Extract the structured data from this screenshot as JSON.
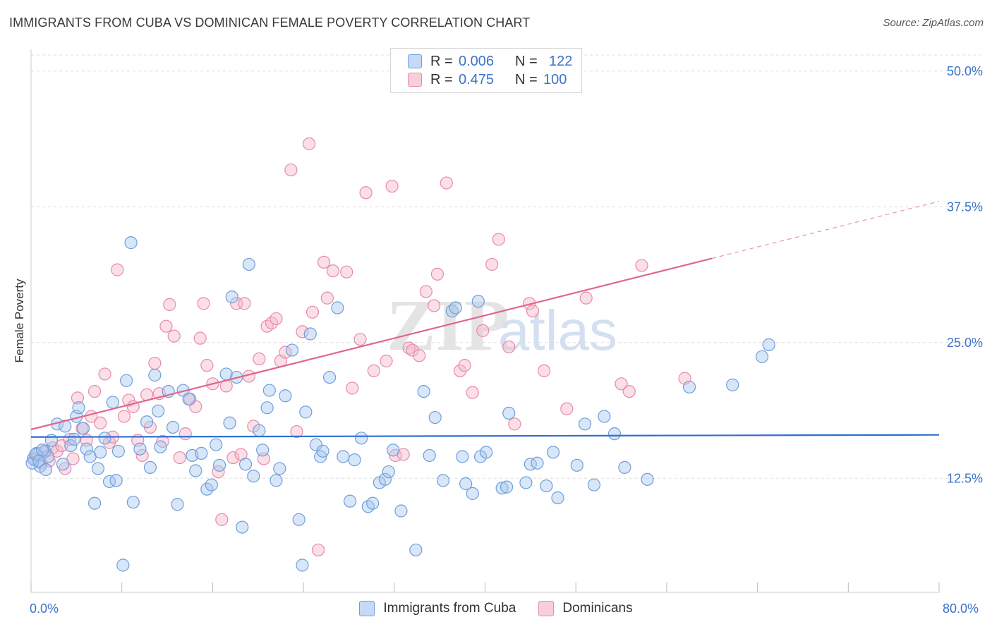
{
  "title": "IMMIGRANTS FROM CUBA VS DOMINICAN FEMALE POVERTY CORRELATION CHART",
  "source": "Source: ZipAtlas.com",
  "colors": {
    "blue_fill": "#a9c8ee",
    "blue_stroke": "#6d9fdc",
    "blue_line": "#2f6fd0",
    "pink_fill": "#f5b7c9",
    "pink_stroke": "#e98aa9",
    "pink_line": "#e0668f",
    "axis_text": "#3c73c9",
    "grid": "#dddddd"
  },
  "legend": {
    "rows": [
      {
        "r_label": "R =",
        "r_value": "0.006",
        "n_label": "N =",
        "n_value": "122"
      },
      {
        "r_label": "R =",
        "r_value": "0.475",
        "n_label": "N =",
        "n_value": "100"
      }
    ]
  },
  "bottom_legend": [
    "Immigrants from Cuba",
    "Dominicans"
  ],
  "watermark": {
    "zip": "ZIP",
    "atlas": "atlas"
  },
  "chart_data": {
    "type": "scatter",
    "title": "IMMIGRANTS FROM CUBA VS DOMINICAN FEMALE POVERTY CORRELATION CHART",
    "xlabel": "",
    "ylabel": "Female Poverty",
    "xlim": [
      0,
      80
    ],
    "ylim": [
      2,
      52
    ],
    "x_tick_labels": [
      "0.0%",
      "80.0%"
    ],
    "y_ticks": [
      12.5,
      25.0,
      37.5,
      50.0
    ],
    "y_tick_labels": [
      "12.5%",
      "25.0%",
      "37.5%",
      "50.0%"
    ],
    "grid": true,
    "legend_position": "top-center",
    "series": [
      {
        "name": "Immigrants from Cuba",
        "color": "#a9c8ee",
        "trend": {
          "x": [
            0,
            80
          ],
          "y": [
            16.3,
            16.5
          ],
          "solid_to_x": 80
        },
        "points": [
          [
            0.2,
            14.3
          ],
          [
            0.5,
            14.8
          ],
          [
            0.8,
            13.6
          ],
          [
            1.2,
            15.0
          ],
          [
            1.5,
            14.5
          ],
          [
            1.8,
            16.0
          ],
          [
            2.3,
            17.5
          ],
          [
            2.8,
            13.8
          ],
          [
            3.0,
            17.3
          ],
          [
            3.5,
            15.5
          ],
          [
            3.8,
            16.1
          ],
          [
            4.0,
            18.2
          ],
          [
            4.2,
            19.0
          ],
          [
            4.6,
            17.1
          ],
          [
            4.9,
            15.2
          ],
          [
            5.2,
            14.5
          ],
          [
            5.6,
            10.2
          ],
          [
            5.9,
            13.4
          ],
          [
            6.1,
            14.9
          ],
          [
            6.5,
            16.2
          ],
          [
            6.9,
            12.2
          ],
          [
            7.2,
            19.5
          ],
          [
            7.5,
            12.3
          ],
          [
            7.7,
            15.0
          ],
          [
            8.1,
            4.5
          ],
          [
            8.4,
            21.5
          ],
          [
            8.8,
            34.2
          ],
          [
            9.0,
            10.3
          ],
          [
            9.6,
            15.2
          ],
          [
            10.2,
            17.7
          ],
          [
            10.5,
            13.5
          ],
          [
            10.9,
            22.0
          ],
          [
            11.2,
            18.7
          ],
          [
            11.4,
            15.4
          ],
          [
            12.1,
            20.5
          ],
          [
            12.5,
            17.2
          ],
          [
            12.9,
            10.1
          ],
          [
            13.4,
            20.6
          ],
          [
            13.9,
            19.8
          ],
          [
            14.2,
            14.6
          ],
          [
            14.5,
            13.2
          ],
          [
            15.0,
            14.8
          ],
          [
            15.5,
            11.5
          ],
          [
            15.9,
            11.9
          ],
          [
            16.3,
            15.6
          ],
          [
            16.6,
            13.7
          ],
          [
            17.2,
            22.1
          ],
          [
            17.5,
            17.6
          ],
          [
            17.7,
            29.2
          ],
          [
            18.1,
            21.8
          ],
          [
            18.6,
            8.0
          ],
          [
            18.9,
            13.8
          ],
          [
            19.2,
            32.2
          ],
          [
            19.6,
            12.7
          ],
          [
            20.1,
            16.9
          ],
          [
            20.4,
            15.1
          ],
          [
            20.8,
            19.0
          ],
          [
            21.0,
            20.6
          ],
          [
            21.6,
            12.3
          ],
          [
            21.9,
            13.4
          ],
          [
            22.4,
            20.1
          ],
          [
            23.0,
            24.3
          ],
          [
            23.6,
            8.7
          ],
          [
            23.9,
            4.5
          ],
          [
            24.2,
            18.6
          ],
          [
            24.6,
            25.8
          ],
          [
            25.1,
            15.6
          ],
          [
            25.5,
            14.5
          ],
          [
            25.7,
            15.0
          ],
          [
            26.3,
            21.8
          ],
          [
            27.0,
            28.2
          ],
          [
            27.5,
            14.5
          ],
          [
            28.1,
            10.4
          ],
          [
            28.5,
            14.2
          ],
          [
            29.1,
            16.2
          ],
          [
            29.7,
            9.9
          ],
          [
            30.1,
            10.2
          ],
          [
            30.7,
            12.1
          ],
          [
            31.2,
            12.4
          ],
          [
            31.5,
            13.1
          ],
          [
            31.9,
            15.1
          ],
          [
            32.6,
            9.5
          ],
          [
            33.9,
            5.9
          ],
          [
            34.6,
            20.5
          ],
          [
            35.1,
            14.6
          ],
          [
            35.6,
            18.1
          ],
          [
            36.3,
            12.3
          ],
          [
            37.1,
            27.9
          ],
          [
            37.4,
            28.2
          ],
          [
            38.0,
            14.5
          ],
          [
            38.3,
            12.0
          ],
          [
            38.9,
            11.1
          ],
          [
            39.4,
            28.8
          ],
          [
            39.6,
            14.5
          ],
          [
            40.1,
            14.9
          ],
          [
            41.5,
            11.6
          ],
          [
            41.9,
            11.7
          ],
          [
            42.1,
            18.5
          ],
          [
            43.6,
            12.1
          ],
          [
            44.0,
            13.8
          ],
          [
            44.6,
            13.9
          ],
          [
            45.4,
            11.8
          ],
          [
            46.0,
            14.9
          ],
          [
            46.4,
            10.7
          ],
          [
            48.1,
            13.7
          ],
          [
            48.8,
            17.5
          ],
          [
            49.6,
            11.9
          ],
          [
            50.5,
            18.2
          ],
          [
            51.4,
            16.6
          ],
          [
            52.3,
            13.5
          ],
          [
            54.3,
            12.4
          ],
          [
            58.0,
            20.9
          ],
          [
            61.8,
            21.1
          ],
          [
            64.4,
            23.7
          ],
          [
            65.0,
            24.8
          ],
          [
            0.1,
            13.9
          ],
          [
            0.4,
            14.7
          ],
          [
            0.7,
            14.1
          ],
          [
            1.0,
            15.1
          ],
          [
            1.3,
            13.3
          ]
        ]
      },
      {
        "name": "Dominicans",
        "color": "#f5b7c9",
        "trend": {
          "x": [
            0,
            80
          ],
          "y": [
            17.0,
            38.0
          ],
          "solid_to_x": 60
        },
        "points": [
          [
            0.3,
            14.2
          ],
          [
            0.6,
            14.7
          ],
          [
            0.9,
            13.9
          ],
          [
            1.2,
            14.9
          ],
          [
            1.6,
            14.1
          ],
          [
            1.9,
            15.3
          ],
          [
            2.3,
            15.0
          ],
          [
            2.7,
            15.5
          ],
          [
            3.0,
            13.4
          ],
          [
            3.4,
            16.1
          ],
          [
            3.7,
            14.3
          ],
          [
            4.1,
            19.9
          ],
          [
            4.5,
            17.1
          ],
          [
            4.9,
            16.0
          ],
          [
            5.3,
            18.2
          ],
          [
            5.6,
            20.5
          ],
          [
            6.1,
            17.6
          ],
          [
            6.5,
            22.1
          ],
          [
            6.9,
            15.8
          ],
          [
            7.2,
            16.3
          ],
          [
            7.6,
            31.7
          ],
          [
            8.2,
            18.2
          ],
          [
            8.6,
            19.7
          ],
          [
            9.0,
            19.1
          ],
          [
            9.4,
            16.0
          ],
          [
            9.8,
            14.6
          ],
          [
            10.2,
            20.2
          ],
          [
            10.5,
            17.2
          ],
          [
            10.9,
            23.1
          ],
          [
            11.3,
            20.3
          ],
          [
            11.6,
            15.9
          ],
          [
            11.9,
            26.5
          ],
          [
            12.2,
            28.5
          ],
          [
            12.6,
            25.6
          ],
          [
            13.1,
            14.4
          ],
          [
            13.6,
            16.6
          ],
          [
            14.0,
            19.8
          ],
          [
            14.5,
            19.1
          ],
          [
            14.9,
            25.4
          ],
          [
            15.2,
            28.6
          ],
          [
            15.5,
            22.9
          ],
          [
            16.0,
            21.2
          ],
          [
            16.5,
            13.1
          ],
          [
            16.8,
            8.7
          ],
          [
            17.2,
            21.0
          ],
          [
            17.8,
            14.4
          ],
          [
            18.1,
            28.6
          ],
          [
            18.5,
            14.7
          ],
          [
            18.8,
            28.6
          ],
          [
            19.2,
            21.9
          ],
          [
            19.6,
            17.3
          ],
          [
            20.1,
            23.5
          ],
          [
            20.5,
            14.3
          ],
          [
            20.8,
            26.5
          ],
          [
            21.2,
            26.8
          ],
          [
            21.6,
            27.2
          ],
          [
            22.0,
            23.3
          ],
          [
            22.4,
            24.1
          ],
          [
            22.9,
            40.9
          ],
          [
            23.4,
            16.8
          ],
          [
            23.9,
            26.0
          ],
          [
            24.5,
            43.3
          ],
          [
            24.8,
            27.8
          ],
          [
            25.3,
            5.9
          ],
          [
            25.8,
            32.4
          ],
          [
            26.1,
            29.1
          ],
          [
            26.6,
            31.6
          ],
          [
            27.8,
            31.5
          ],
          [
            28.3,
            20.8
          ],
          [
            29.0,
            25.3
          ],
          [
            29.5,
            38.8
          ],
          [
            30.2,
            22.4
          ],
          [
            31.3,
            23.3
          ],
          [
            31.8,
            39.4
          ],
          [
            32.1,
            14.6
          ],
          [
            32.8,
            14.7
          ],
          [
            33.3,
            24.5
          ],
          [
            33.6,
            24.3
          ],
          [
            34.2,
            23.8
          ],
          [
            34.8,
            29.7
          ],
          [
            35.5,
            28.4
          ],
          [
            35.8,
            31.3
          ],
          [
            36.6,
            39.7
          ],
          [
            37.8,
            22.4
          ],
          [
            38.2,
            22.9
          ],
          [
            38.9,
            20.4
          ],
          [
            39.8,
            26.1
          ],
          [
            40.6,
            32.2
          ],
          [
            41.2,
            34.5
          ],
          [
            42.1,
            24.6
          ],
          [
            42.6,
            17.5
          ],
          [
            43.9,
            28.6
          ],
          [
            44.2,
            27.9
          ],
          [
            45.2,
            22.4
          ],
          [
            47.2,
            18.9
          ],
          [
            48.9,
            29.1
          ],
          [
            52.0,
            21.2
          ],
          [
            52.7,
            20.5
          ],
          [
            53.8,
            32.1
          ],
          [
            57.6,
            21.7
          ]
        ]
      }
    ]
  }
}
